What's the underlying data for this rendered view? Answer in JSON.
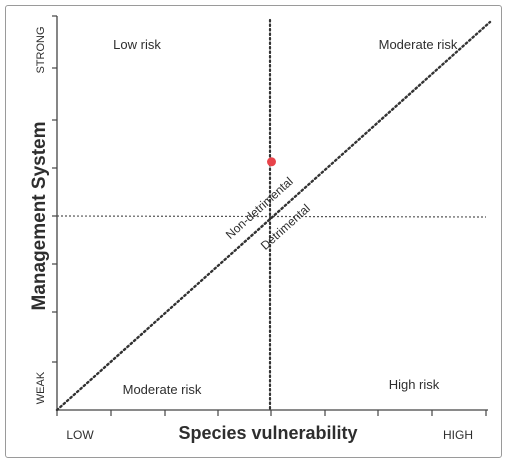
{
  "axes": {
    "y_title": "Management System",
    "y_high": "STRONG",
    "y_low": "WEAK",
    "x_title": "Species vulnerability",
    "x_low": "LOW",
    "x_high": "HIGH"
  },
  "quadrants": {
    "top_left": "Low risk",
    "top_right": "Moderate risk",
    "bottom_left": "Moderate risk",
    "bottom_right": "High risk"
  },
  "diagonal": {
    "above": "Non-detrimental",
    "below": "Detrimental"
  },
  "marker": {
    "vulnerability": 0.5,
    "management": 0.63,
    "color": "#e8434a"
  }
}
